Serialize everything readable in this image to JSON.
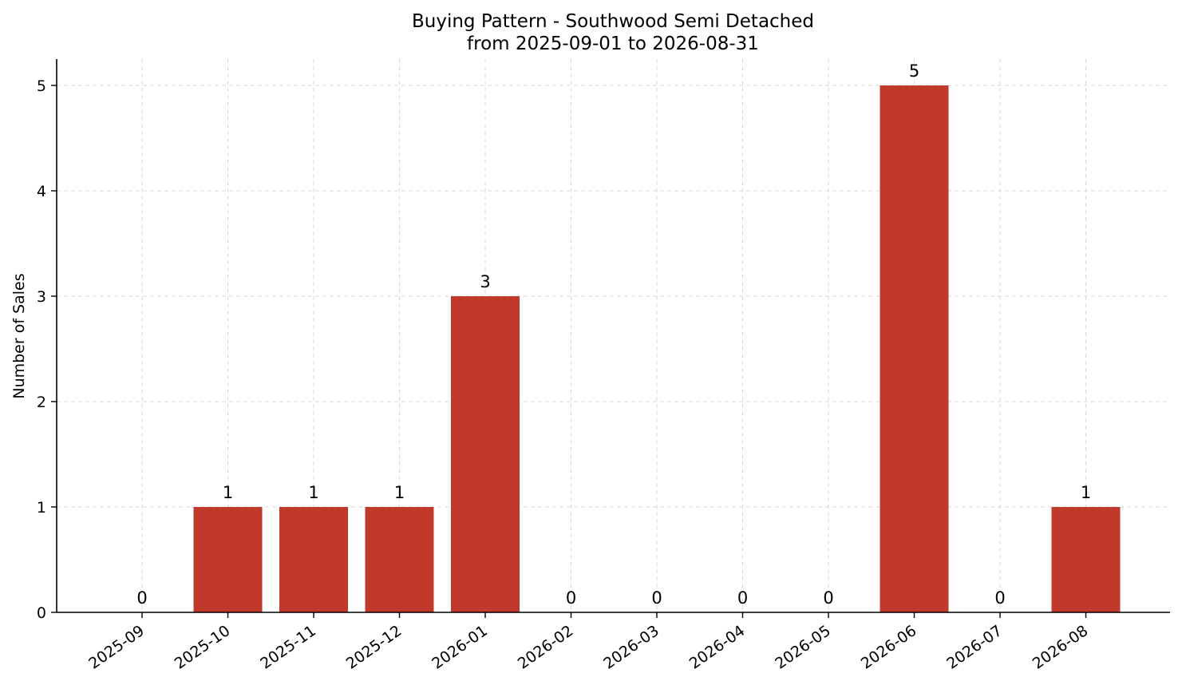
{
  "chart_data": {
    "type": "bar",
    "title": "Buying Pattern - Southwood Semi Detached",
    "subtitle": "from 2025-09-01 to 2026-08-31",
    "xlabel": "",
    "ylabel": "Number of Sales",
    "categories": [
      "2025-09",
      "2025-10",
      "2025-11",
      "2025-12",
      "2026-01",
      "2026-02",
      "2026-03",
      "2026-04",
      "2026-05",
      "2026-06",
      "2026-07",
      "2026-08"
    ],
    "values": [
      0,
      1,
      1,
      1,
      3,
      0,
      0,
      0,
      0,
      5,
      0,
      1
    ],
    "ylim": [
      0,
      5.25
    ],
    "yticks": [
      0,
      1,
      2,
      3,
      4,
      5
    ],
    "grid": true,
    "bar_color": "#c0392b",
    "data_labels": true,
    "legend": "none"
  }
}
